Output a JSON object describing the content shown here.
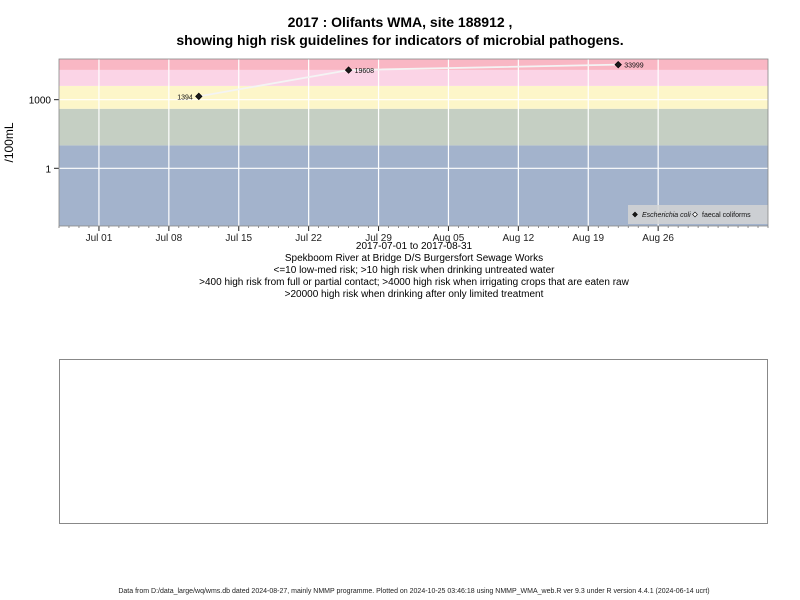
{
  "title_line1": "2017 : Olifants WMA, site 188912 ,",
  "title_line2": "showing high risk guidelines for indicators of microbial pathogens.",
  "caption": {
    "date_range": "2017-07-01 to 2017-08-31",
    "site_name": "Spekboom River at Bridge D/S Burgersfort Sewage Works",
    "rule1": "<=10 low-med risk; >10 high risk when drinking untreated water",
    "rule2": ">400 high risk from full or partial contact; >4000 high risk when irrigating crops that are eaten raw",
    "rule3": ">20000 high risk when drinking after only limited treatment"
  },
  "footer": "Data from D:/data_large/wq/wms.db dated 2024-08-27, mainly NMMP programme. Plotted on 2024-10-25 03:46:18 using NMMP_WMA_web.R ver 9.3 under R version 4.4.1 (2024-06-14 ucrt)",
  "chart_data": {
    "type": "scatter",
    "ylabel": "/100mL",
    "y_scale": "log",
    "x_range": [
      "2017-06-27",
      "2017-09-06"
    ],
    "x_ticks": [
      {
        "date": "2017-07-01",
        "label": "Jul 01"
      },
      {
        "date": "2017-07-08",
        "label": "Jul 08"
      },
      {
        "date": "2017-07-15",
        "label": "Jul 15"
      },
      {
        "date": "2017-07-22",
        "label": "Jul 22"
      },
      {
        "date": "2017-07-29",
        "label": "Jul 29"
      },
      {
        "date": "2017-08-05",
        "label": "Aug 05"
      },
      {
        "date": "2017-08-12",
        "label": "Aug 12"
      },
      {
        "date": "2017-08-19",
        "label": "Aug 19"
      },
      {
        "date": "2017-08-26",
        "label": "Aug 26"
      }
    ],
    "y_ticks": [
      {
        "value": 1,
        "label": "1"
      },
      {
        "value": 1000,
        "label": "1000"
      }
    ],
    "grid": true,
    "risk_bands": [
      {
        "from": 0.003,
        "to": 10,
        "color": "#a3b3cc"
      },
      {
        "from": 10,
        "to": 400,
        "color": "#c5cfc3"
      },
      {
        "from": 400,
        "to": 4000,
        "color": "#fdf6c9"
      },
      {
        "from": 4000,
        "to": 20000,
        "color": "#fbd4e6"
      },
      {
        "from": 20000,
        "to": 60000,
        "color": "#f9b7c4"
      }
    ],
    "series": [
      {
        "name": "Escherichia coli",
        "marker": "filled-diamond",
        "points": [
          {
            "x": "2017-07-11",
            "y": 1394,
            "label": "1394"
          },
          {
            "x": "2017-07-26",
            "y": 19608,
            "label": "19608"
          },
          {
            "x": "2017-08-22",
            "y": 33999,
            "label": "33999"
          }
        ]
      },
      {
        "name": "faecal coliforms",
        "marker": "open-diamond",
        "points": []
      }
    ],
    "legend_position": "bottom-right"
  }
}
